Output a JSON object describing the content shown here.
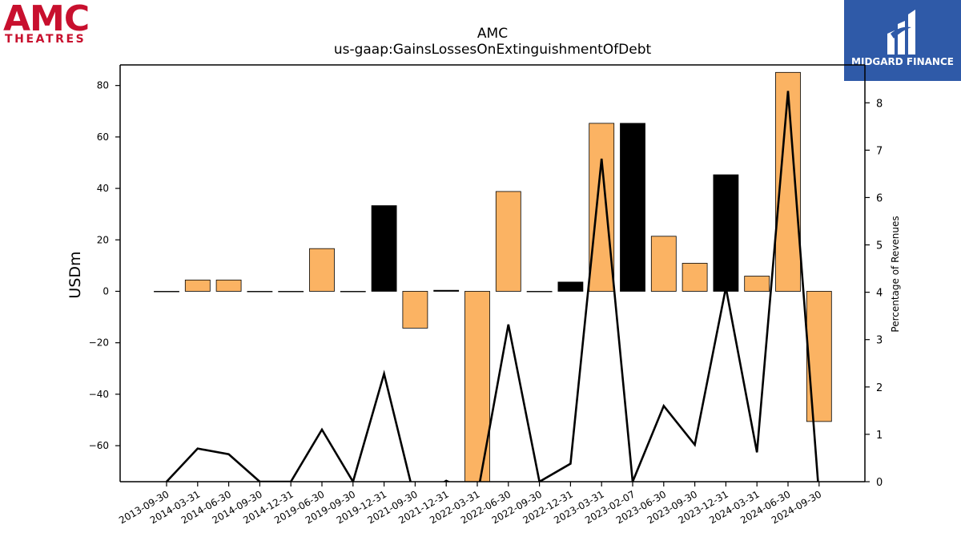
{
  "logos": {
    "left_big": "AMC",
    "left_small": "THEATRES",
    "right_text": "MIDGARD FINANCE",
    "right_bg": "#2f5aa8",
    "brand_red": "#c8102e"
  },
  "chart_data": {
    "type": "bar",
    "title": "AMC",
    "subtitle": "us-gaap:GainsLossesOnExtinguishmentOfDebt",
    "ylabel": "USDm",
    "y2label": "Percentage of Revenues",
    "ylim": [
      -74,
      88
    ],
    "y2lim": [
      0,
      8.8
    ],
    "yticks": [
      -60,
      -40,
      -20,
      0,
      20,
      40,
      60,
      80
    ],
    "y2ticks": [
      0,
      1,
      2,
      3,
      4,
      5,
      6,
      7,
      8
    ],
    "categories": [
      "2013-09-30",
      "2014-03-31",
      "2014-06-30",
      "2014-09-30",
      "2014-12-31",
      "2019-06-30",
      "2019-09-30",
      "2019-12-31",
      "2021-09-30",
      "2021-12-31",
      "2022-03-31",
      "2022-06-30",
      "2022-09-30",
      "2022-12-31",
      "2023-03-31",
      "2023-02-07",
      "2023-06-30",
      "2023-09-30",
      "2023-12-31",
      "2024-03-31",
      "2024-06-30",
      "2024-09-30"
    ],
    "values": [
      0,
      4.4,
      4.4,
      0,
      0,
      16.6,
      0,
      33.3,
      -14.3,
      0.4,
      -75,
      38.8,
      0,
      3.6,
      65.3,
      65.3,
      21.4,
      10.9,
      45.3,
      5.9,
      85.1,
      -50.6
    ],
    "colors": [
      "#fbb363",
      "#fbb363",
      "#fbb363",
      "#fbb363",
      "#fbb363",
      "#fbb363",
      "#fbb363",
      "#000000",
      "#fbb363",
      "#000000",
      "#fbb363",
      "#fbb363",
      "#fbb363",
      "#000000",
      "#fbb363",
      "#000000",
      "#fbb363",
      "#fbb363",
      "#000000",
      "#fbb363",
      "#fbb363",
      "#fbb363"
    ],
    "line": {
      "name": "Percentage of Revenues",
      "values": [
        0,
        0.7,
        0.58,
        0,
        0,
        1.1,
        0,
        2.28,
        -0.4,
        0.02,
        -0.3,
        3.32,
        0,
        0.38,
        6.82,
        0,
        1.6,
        0.78,
        4.1,
        0.62,
        8.25,
        -0.3
      ]
    },
    "grid": false
  }
}
